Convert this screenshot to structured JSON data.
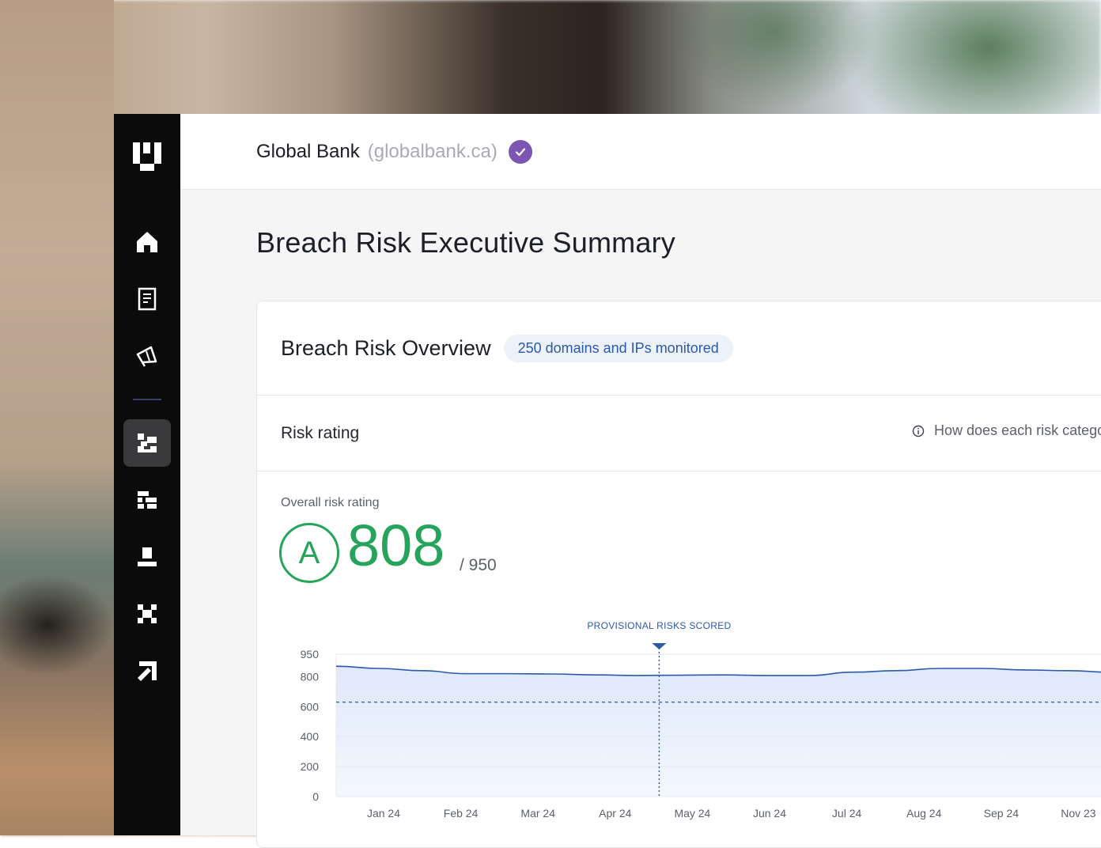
{
  "header": {
    "org_name": "Global Bank",
    "org_domain": "(globalbank.ca)",
    "verified_icon": "check-circle-icon",
    "verified_color": "#7b57b3"
  },
  "sidebar": {
    "logo": "brand-logo-icon",
    "items": [
      {
        "icon": "home-icon",
        "active": false
      },
      {
        "icon": "document-icon",
        "active": false
      },
      {
        "icon": "megaphone-icon",
        "active": false
      },
      {
        "icon": "risk-grid-icon",
        "active": true
      },
      {
        "icon": "vendor-icon",
        "active": false
      },
      {
        "icon": "stack-icon",
        "active": false
      },
      {
        "icon": "network-icon",
        "active": false
      },
      {
        "icon": "arrow-icon",
        "active": false
      }
    ]
  },
  "main": {
    "page_title": "Breach Risk Executive Summary",
    "card": {
      "title": "Breach Risk Overview",
      "badge": "250 domains and IPs monitored",
      "risk_rating_label": "Risk rating",
      "help_text": "How does each risk category",
      "overall_label": "Overall risk rating",
      "grade": "A",
      "score": "808",
      "score_max": "/ 950",
      "accent_color": "#27a45b"
    }
  },
  "chart_data": {
    "type": "area",
    "annotation": "PROVISIONAL RISKS SCORED",
    "annotation_x_index": 4,
    "x_tick_labels": [
      "Jan 24",
      "Feb 24",
      "Mar 24",
      "Apr 24",
      "May 24",
      "Jun 24",
      "Jul 24",
      "Aug 24",
      "Sep 24",
      "Nov 23"
    ],
    "y_ticks": [
      0,
      200,
      400,
      600,
      800,
      950
    ],
    "ylim": [
      0,
      950
    ],
    "threshold": 630,
    "series": [
      {
        "values": [
          870,
          855,
          840,
          820,
          820,
          818,
          812,
          808,
          810,
          812,
          808,
          808,
          830,
          840,
          855,
          855,
          845,
          840,
          830
        ]
      }
    ],
    "line_color": "#2c59a8",
    "fill_color": "#dfe9fb"
  }
}
